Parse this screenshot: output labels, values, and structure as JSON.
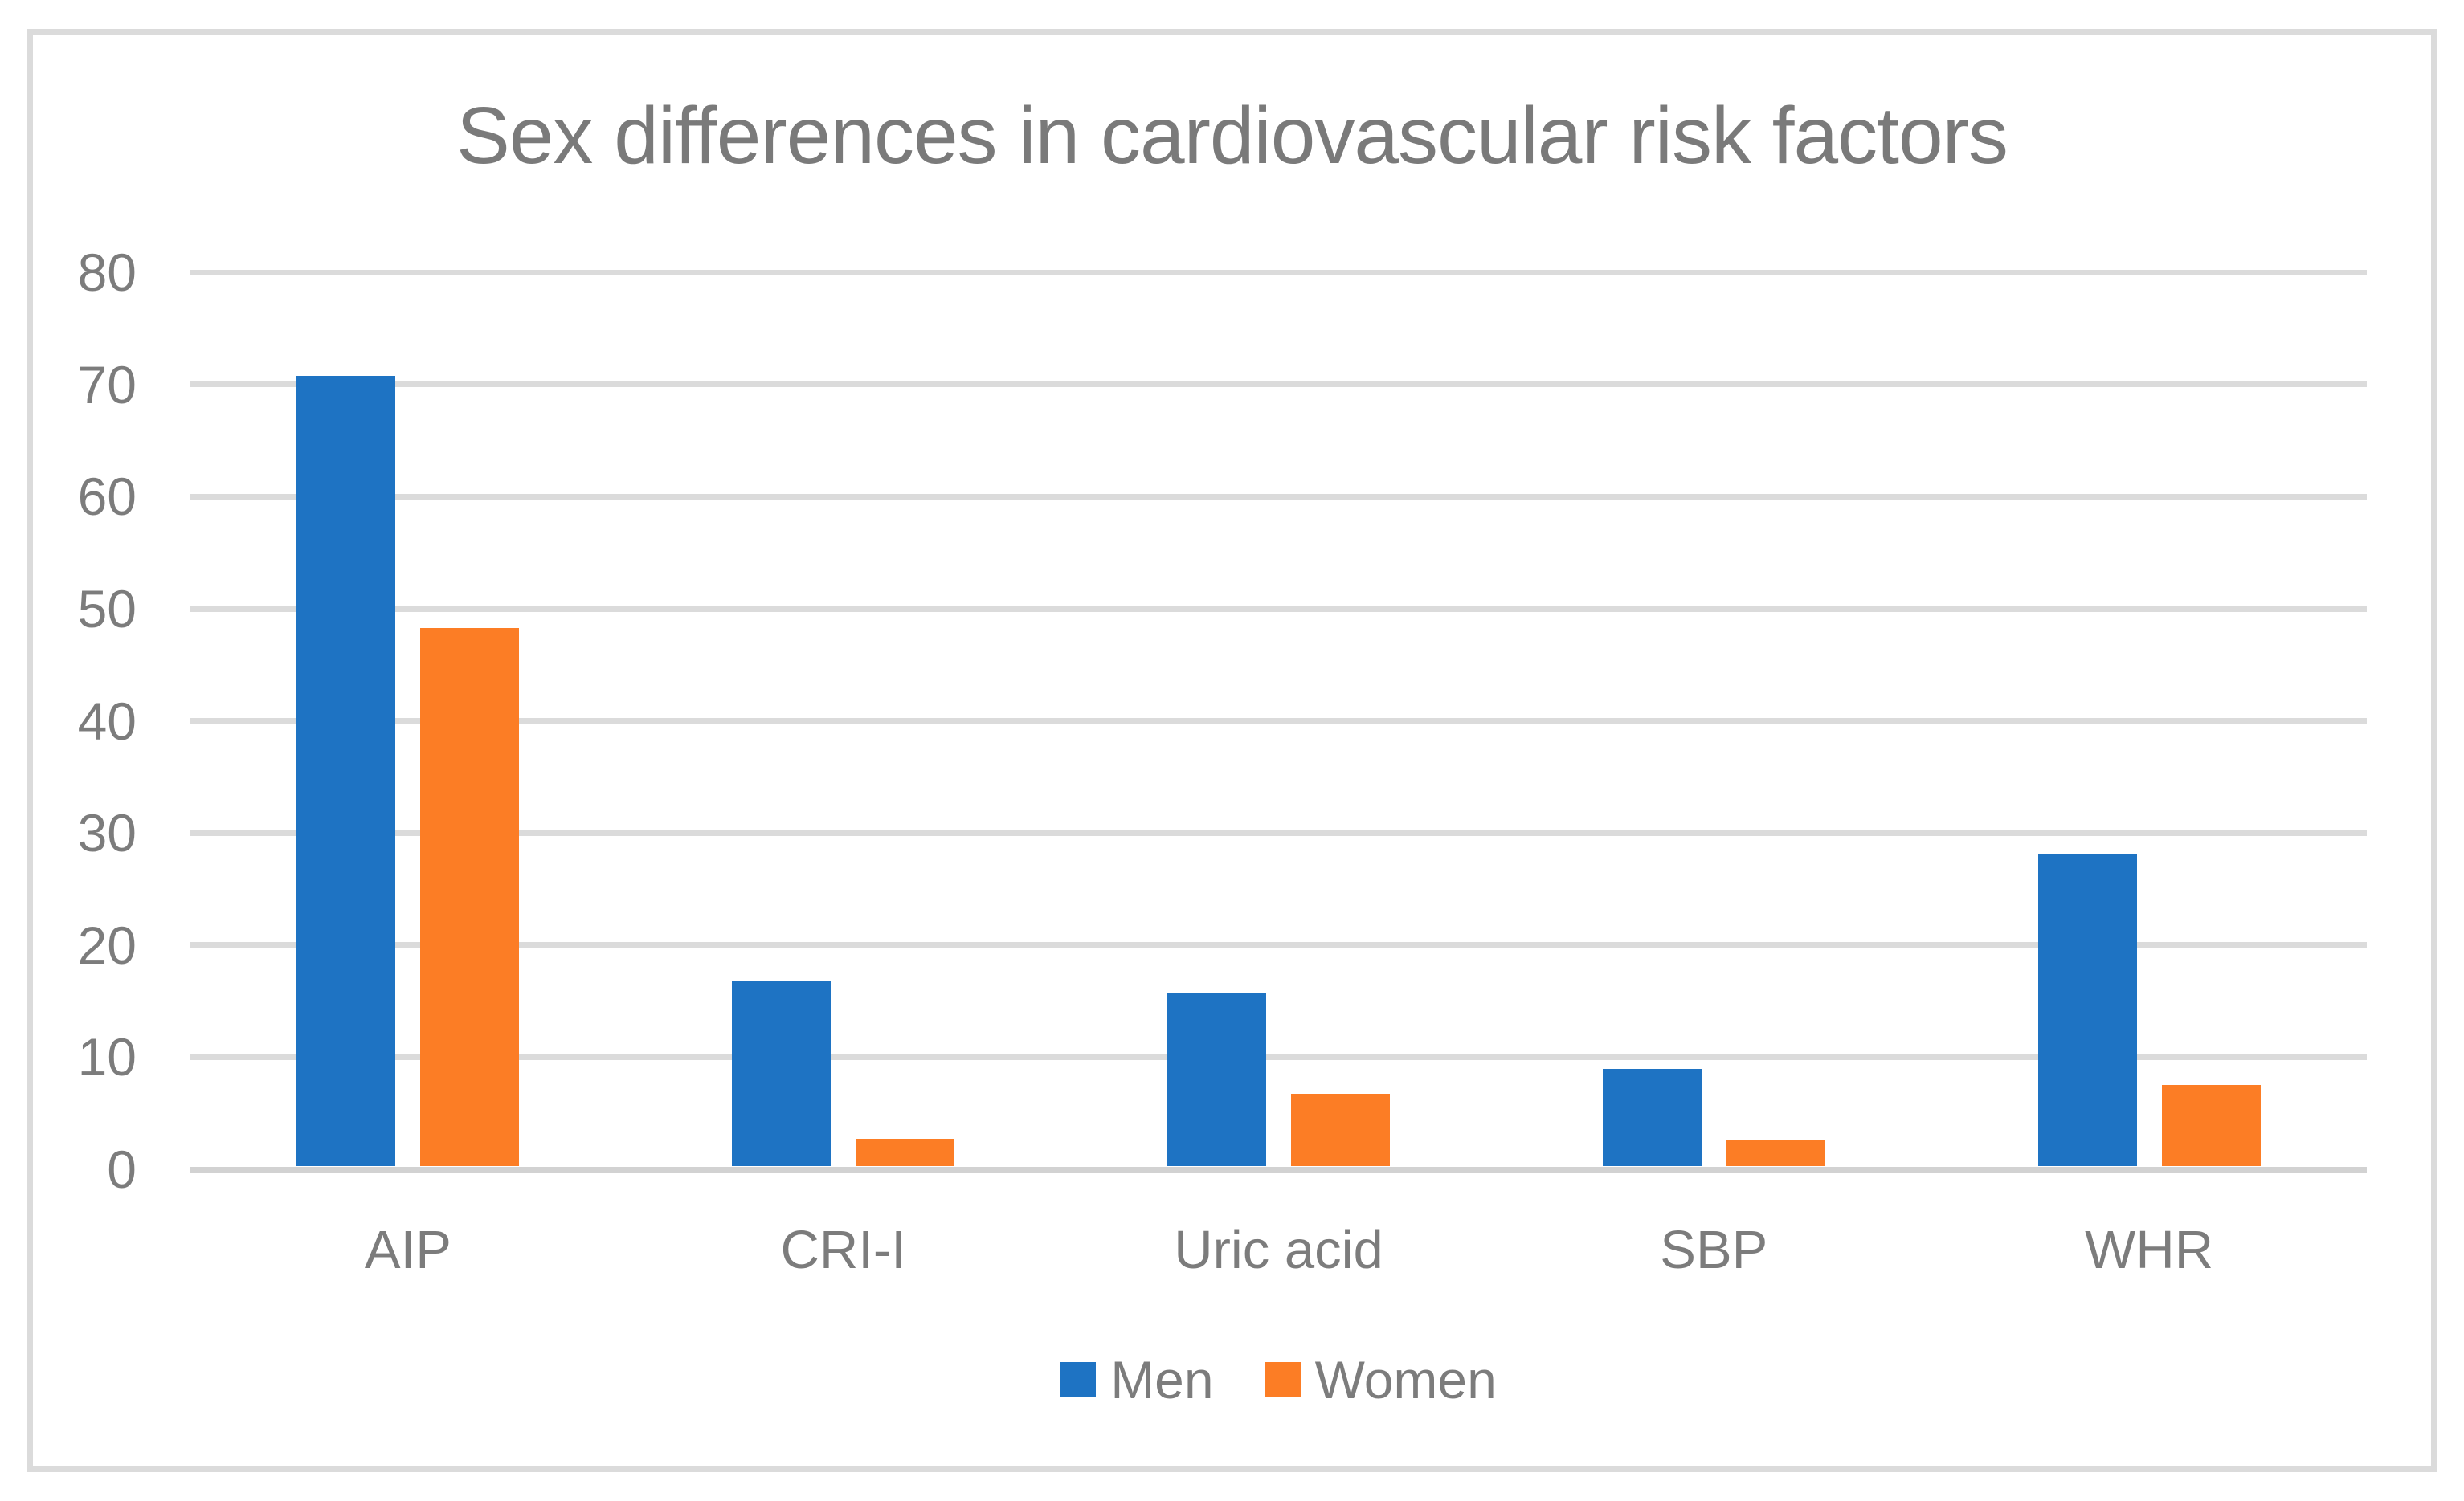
{
  "figure": {
    "background": "#ffffff",
    "border_color": "#dbdbdb"
  },
  "chart_data": {
    "type": "bar",
    "title": "Sex differences in cardiovascular risk factors",
    "title_color": "#7a7a7a",
    "categories": [
      "AIP",
      "CRI-I",
      "Uric acid",
      "SBP",
      "WHR"
    ],
    "series": [
      {
        "name": "Men",
        "color": "#1e73c3",
        "values": [
          70.5,
          16.5,
          15.5,
          8.7,
          27.9
        ]
      },
      {
        "name": "Women",
        "color": "#fc7d25",
        "values": [
          48.0,
          2.5,
          6.5,
          2.4,
          7.3
        ]
      }
    ],
    "xlabel": "",
    "ylabel": "",
    "ylim": [
      0,
      80
    ],
    "yticks": [
      0,
      10,
      20,
      30,
      40,
      50,
      60,
      70,
      80
    ],
    "grid": true,
    "gridline_color": "#dbdbdb",
    "axis_text_color": "#7c7c7c",
    "legend_position": "bottom"
  }
}
